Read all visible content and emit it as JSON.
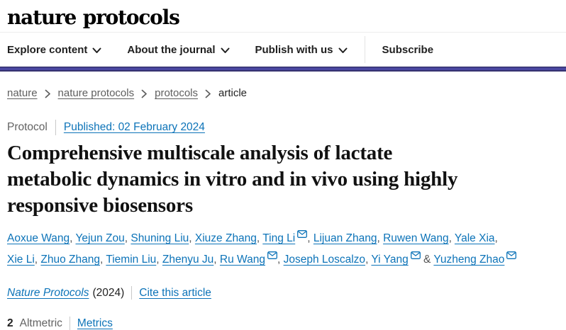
{
  "header": {
    "logo": "nature protocols",
    "nav_items": [
      {
        "label": "Explore content",
        "dropdown": true
      },
      {
        "label": "About the journal",
        "dropdown": true
      },
      {
        "label": "Publish with us",
        "dropdown": true
      },
      {
        "label": "Subscribe",
        "dropdown": false
      }
    ]
  },
  "breadcrumb": {
    "items": [
      {
        "label": "nature",
        "link": true
      },
      {
        "label": "nature protocols",
        "link": true
      },
      {
        "label": "protocols",
        "link": true
      },
      {
        "label": "article",
        "link": false
      }
    ]
  },
  "article": {
    "type_label": "Protocol",
    "published": "Published: 02 February 2024",
    "title": "Comprehensive multiscale analysis of lactate metabolic dynamics in vitro and in vivo using highly responsive biosensors",
    "title_lines": [
      "Comprehensive multiscale analysis of lactate",
      "metabolic dynamics in vitro and in vivo using highly",
      "responsive biosensors"
    ],
    "authors": [
      {
        "name": "Aoxue Wang",
        "email_icon": false
      },
      {
        "name": "Yejun Zou",
        "email_icon": false
      },
      {
        "name": "Shuning Liu",
        "email_icon": false
      },
      {
        "name": "Xiuze Zhang",
        "email_icon": false
      },
      {
        "name": "Ting Li",
        "email_icon": true
      },
      {
        "name": "Lijuan Zhang",
        "email_icon": false
      },
      {
        "name": "Ruwen Wang",
        "email_icon": false
      },
      {
        "name": "Yale Xia",
        "email_icon": false
      },
      {
        "name": "Xie Li",
        "email_icon": false
      },
      {
        "name": "Zhuo Zhang",
        "email_icon": false
      },
      {
        "name": "Tiemin Liu",
        "email_icon": false
      },
      {
        "name": "Zhenyu Ju",
        "email_icon": false
      },
      {
        "name": "Ru Wang",
        "email_icon": true
      },
      {
        "name": "Joseph Loscalzo",
        "email_icon": false
      },
      {
        "name": "Yi Yang",
        "email_icon": true
      },
      {
        "name": "Yuzheng Zhao",
        "email_icon": true
      }
    ],
    "author_separator": ", ",
    "author_last_separator": " & ",
    "journal_name": "Nature Protocols",
    "journal_year": "(2024)",
    "cite_link": "Cite this article",
    "altmetric_value": "2",
    "altmetric_label": "Altmetric",
    "metrics_link": "Metrics"
  },
  "colors": {
    "link_blue": "#0c73b8",
    "brand_band_purple": "#4b48a2",
    "text_dark": "#222222",
    "text_gray": "#5e5e5e"
  }
}
